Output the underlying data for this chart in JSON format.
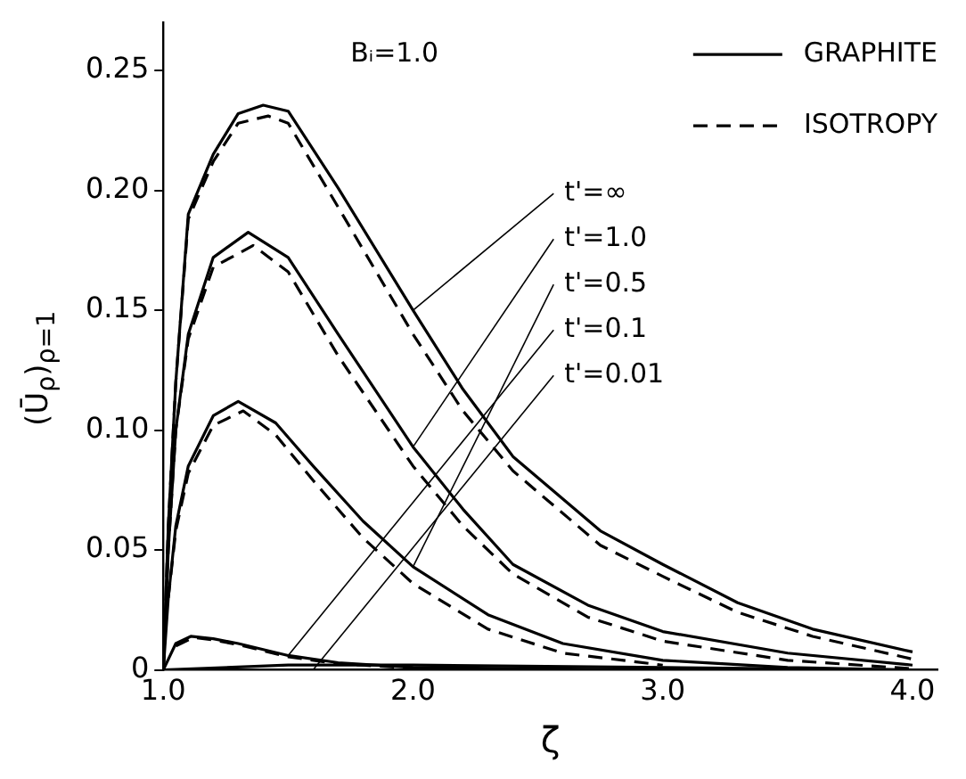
{
  "chart_data": {
    "type": "line",
    "xlabel": "ζ",
    "ylabel": "(Ū$_{ρ}$)$_{ρ=1}$",
    "xlim": [
      1,
      4.1
    ],
    "ylim": [
      0,
      0.27
    ],
    "xticks": [
      {
        "value": 1,
        "label": "1.0"
      },
      {
        "value": 2,
        "label": "2.0"
      },
      {
        "value": 3,
        "label": "3.0"
      },
      {
        "value": 4,
        "label": "4.0"
      }
    ],
    "yticks": [
      0,
      0.05,
      {
        "value": 0.1,
        "label": "0.10"
      },
      0.15,
      {
        "value": 0.2,
        "label": "0.20"
      },
      0.25
    ],
    "grid": false,
    "legend": "top right",
    "annotations": [
      "Bᵢ=1.0",
      {
        "text": "t'=∞",
        "x": 2.0,
        "y": 0.15
      },
      {
        "text": "t'=1.0",
        "x": 2.0,
        "y": 0.093
      },
      {
        "text": "t'=0.5",
        "x": 2.0,
        "y": 0.043
      },
      {
        "text": "t'=0.1",
        "x": 1.5,
        "y": 0.006
      },
      {
        "text": "t'=0.01",
        "x": 1.6,
        "y": 0
      }
    ],
    "series": [
      {
        "name": "GRAPHITE",
        "color": "#000000",
        "line_style": "solid",
        "x": [
          1,
          1.02,
          1.05,
          1.1,
          1.2,
          1.3,
          1.4,
          1.5,
          1.7,
          2.0,
          2.2,
          2.4,
          2.75,
          3.0,
          3.3,
          3.6,
          4.0
        ],
        "values": [
          0,
          0.06,
          0.12,
          0.19,
          0.215,
          0.232,
          0.2355,
          0.233,
          0.201,
          0.15,
          0.117,
          0.089,
          0.058,
          0.044,
          0.028,
          0.017,
          0.0075
        ]
      },
      {
        "name": "ISOTROPY",
        "color": "#000000",
        "line_style": "dashed",
        "x": [
          1,
          1.02,
          1.05,
          1.1,
          1.2,
          1.3,
          1.42,
          1.5,
          1.7,
          2.0,
          2.2,
          2.4,
          2.75,
          3.0,
          3.3,
          3.6,
          4.0
        ],
        "values": [
          0,
          0.06,
          0.12,
          0.188,
          0.212,
          0.228,
          0.231,
          0.228,
          0.193,
          0.14,
          0.108,
          0.083,
          0.052,
          0.039,
          0.024,
          0.014,
          0.0045
        ]
      },
      {
        "color": "#000000",
        "line_style": "solid",
        "x": [
          1,
          1.02,
          1.05,
          1.1,
          1.2,
          1.34,
          1.5,
          1.7,
          2.0,
          2.2,
          2.4,
          2.7,
          3.0,
          3.5,
          4.0
        ],
        "values": [
          0,
          0.05,
          0.1,
          0.14,
          0.172,
          0.1825,
          0.172,
          0.14,
          0.093,
          0.067,
          0.044,
          0.027,
          0.016,
          0.007,
          0.002
        ]
      },
      {
        "color": "#000000",
        "line_style": "dashed",
        "x": [
          1,
          1.02,
          1.05,
          1.1,
          1.2,
          1.36,
          1.5,
          1.7,
          2.0,
          2.2,
          2.4,
          2.7,
          3.0,
          3.5,
          4.0
        ],
        "values": [
          0,
          0.05,
          0.1,
          0.138,
          0.168,
          0.177,
          0.166,
          0.131,
          0.085,
          0.06,
          0.04,
          0.022,
          0.012,
          0.004,
          0.0005
        ]
      },
      {
        "color": "#000000",
        "line_style": "solid",
        "x": [
          1,
          1.02,
          1.05,
          1.1,
          1.2,
          1.3,
          1.45,
          1.6,
          1.8,
          2.0,
          2.3,
          2.6,
          3.0,
          3.5,
          4.0
        ],
        "values": [
          0,
          0.03,
          0.06,
          0.085,
          0.106,
          0.112,
          0.103,
          0.085,
          0.062,
          0.043,
          0.023,
          0.011,
          0.004,
          0.001,
          0
        ]
      },
      {
        "color": "#000000",
        "line_style": "dashed",
        "x": [
          1.02,
          1.05,
          1.1,
          1.2,
          1.32,
          1.45,
          1.6,
          1.8,
          2.0,
          2.3,
          2.6,
          3.0
        ],
        "values": [
          0.03,
          0.058,
          0.082,
          0.102,
          0.108,
          0.098,
          0.079,
          0.055,
          0.036,
          0.017,
          0.007,
          0.002
        ]
      },
      {
        "color": "#000000",
        "line_style": "solid",
        "x": [
          1,
          1.05,
          1.11,
          1.2,
          1.3,
          1.5,
          1.7,
          2.0,
          3.0,
          4.0
        ],
        "values": [
          0,
          0.011,
          0.014,
          0.013,
          0.011,
          0.006,
          0.003,
          0.001,
          0,
          0
        ]
      },
      {
        "color": "#000000",
        "line_style": "dashed",
        "x": [
          1.05,
          1.12,
          1.2,
          1.3,
          1.5,
          1.7,
          2.0
        ],
        "values": [
          0.01,
          0.0135,
          0.0125,
          0.0105,
          0.0055,
          0.0025,
          0.0008
        ]
      },
      {
        "color": "#000000",
        "line_style": "solid",
        "x": [
          1,
          1.5,
          2.0,
          3.0,
          4.0
        ],
        "values": [
          0,
          0.002,
          0.002,
          0.001,
          0
        ]
      }
    ]
  }
}
